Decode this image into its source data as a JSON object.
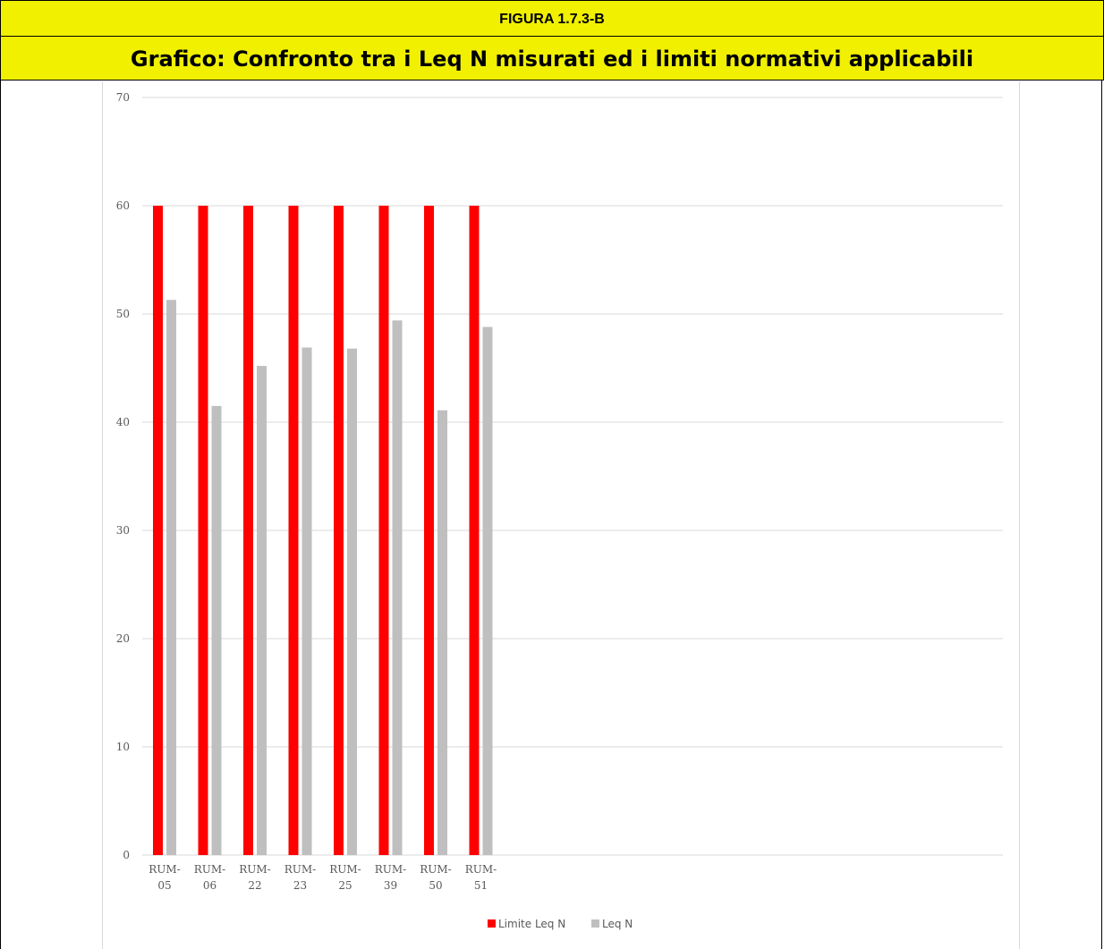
{
  "figure_label": "FIGURA 1.7.3-B",
  "figure_title": "Grafico: Confronto tra i Leq N misurati ed i limiti normativi applicabili",
  "chart_data": {
    "type": "bar",
    "title": "",
    "xlabel": "",
    "ylabel": "",
    "ylim": [
      0,
      70
    ],
    "yticks": [
      0,
      10,
      20,
      30,
      40,
      50,
      60,
      70
    ],
    "grid": true,
    "legend_position": "bottom",
    "categories": [
      [
        "RUM-",
        "05"
      ],
      [
        "RUM-",
        "06"
      ],
      [
        "RUM-",
        "22"
      ],
      [
        "RUM-",
        "23"
      ],
      [
        "RUM-",
        "25"
      ],
      [
        "RUM-",
        "39"
      ],
      [
        "RUM-",
        "50"
      ],
      [
        "RUM-",
        "51"
      ]
    ],
    "series": [
      {
        "name": "Limite Leq N",
        "color": "#ff0000",
        "values": [
          60,
          60,
          60,
          60,
          60,
          60,
          60,
          60
        ]
      },
      {
        "name": "Leq N",
        "color": "#bfbfbf",
        "values": [
          51.3,
          41.5,
          45.2,
          46.9,
          46.8,
          49.4,
          41.1,
          48.8
        ]
      }
    ]
  }
}
